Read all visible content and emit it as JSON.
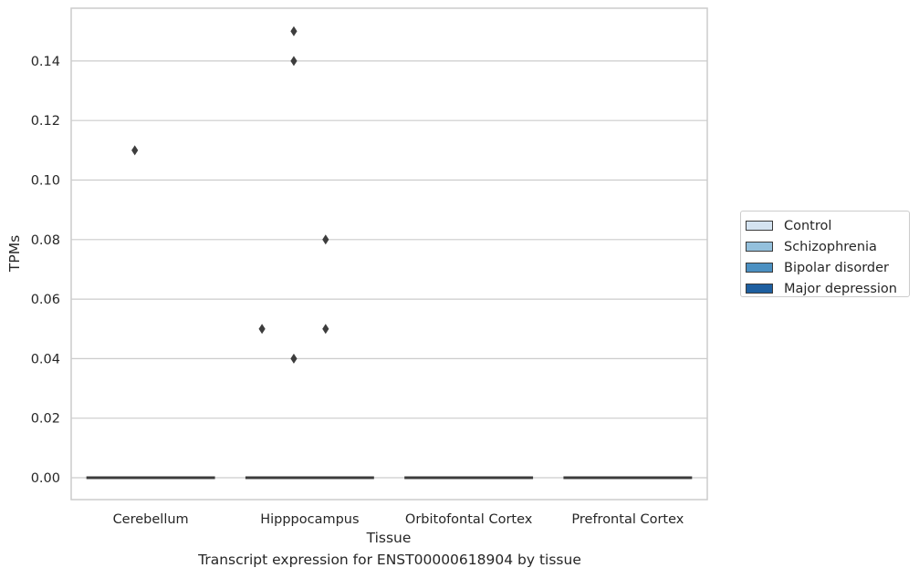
{
  "chart_data": {
    "type": "box",
    "title": "Transcript expression for ENST00000618904 by tissue",
    "xlabel": "Tissue",
    "ylabel": "TPMs",
    "categories": [
      "Cerebellum",
      "Hipppocampus",
      "Orbitofontal Cortex",
      "Prefrontal Cortex"
    ],
    "yticks": [
      "0.00",
      "0.02",
      "0.04",
      "0.06",
      "0.08",
      "0.10",
      "0.12",
      "0.14"
    ],
    "ylim": [
      -0.007,
      0.158
    ],
    "grid": true,
    "legend_position": "right",
    "series": [
      {
        "name": "Control",
        "color": "#d4e3f1",
        "boxes": [
          {
            "category": "Cerebellum",
            "median": 0,
            "q1": 0,
            "q3": 0,
            "outliers": []
          },
          {
            "category": "Hipppocampus",
            "median": 0,
            "q1": 0,
            "q3": 0,
            "outliers": [
              0.05
            ]
          },
          {
            "category": "Orbitofontal Cortex",
            "median": 0,
            "q1": 0,
            "q3": 0,
            "outliers": []
          },
          {
            "category": "Prefrontal Cortex",
            "median": 0,
            "q1": 0,
            "q3": 0,
            "outliers": []
          }
        ]
      },
      {
        "name": "Schizophrenia",
        "color": "#94c0dc",
        "boxes": [
          {
            "category": "Cerebellum",
            "median": 0,
            "q1": 0,
            "q3": 0,
            "outliers": [
              0.11
            ]
          },
          {
            "category": "Hipppocampus",
            "median": 0,
            "q1": 0,
            "q3": 0,
            "outliers": [
              0.04,
              0.14,
              0.15
            ]
          },
          {
            "category": "Orbitofontal Cortex",
            "median": 0,
            "q1": 0,
            "q3": 0,
            "outliers": []
          },
          {
            "category": "Prefrontal Cortex",
            "median": 0,
            "q1": 0,
            "q3": 0,
            "outliers": []
          }
        ]
      },
      {
        "name": "Bipolar disorder",
        "color": "#4b90c2",
        "boxes": [
          {
            "category": "Cerebellum",
            "median": 0,
            "q1": 0,
            "q3": 0,
            "outliers": []
          },
          {
            "category": "Hipppocampus",
            "median": 0,
            "q1": 0,
            "q3": 0,
            "outliers": [
              0.05,
              0.08
            ]
          },
          {
            "category": "Orbitofontal Cortex",
            "median": 0,
            "q1": 0,
            "q3": 0,
            "outliers": []
          },
          {
            "category": "Prefrontal Cortex",
            "median": 0,
            "q1": 0,
            "q3": 0,
            "outliers": []
          }
        ]
      },
      {
        "name": "Major depression",
        "color": "#1e5fa0",
        "boxes": [
          {
            "category": "Cerebellum",
            "median": 0,
            "q1": 0,
            "q3": 0,
            "outliers": []
          },
          {
            "category": "Hipppocampus",
            "median": 0,
            "q1": 0,
            "q3": 0,
            "outliers": []
          },
          {
            "category": "Orbitofontal Cortex",
            "median": 0,
            "q1": 0,
            "q3": 0,
            "outliers": []
          },
          {
            "category": "Prefrontal Cortex",
            "median": 0,
            "q1": 0,
            "q3": 0,
            "outliers": []
          }
        ]
      }
    ]
  }
}
